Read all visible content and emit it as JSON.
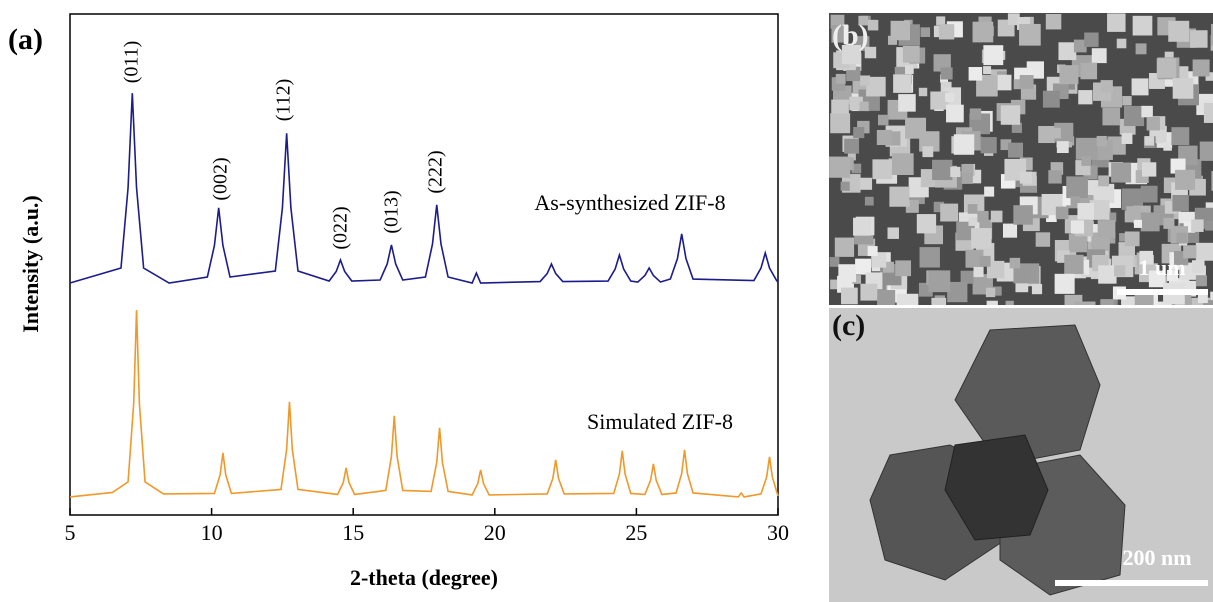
{
  "chart_data": {
    "type": "line",
    "xlabel": "2-theta (degree)",
    "ylabel": "Intensity (a.u.)",
    "xlim": [
      5,
      30
    ],
    "xticks": [
      5,
      10,
      15,
      20,
      25,
      30
    ],
    "ylim": [
      0,
      100
    ],
    "annotations": [
      "(011)",
      "(002)",
      "(112)",
      "(022)",
      "(013)",
      "(222)"
    ],
    "series": [
      {
        "name": "As-synthesized ZIF-8",
        "color": "#1c1c8c",
        "x": [
          5,
          6.8,
          7.05,
          7.2,
          7.35,
          7.6,
          8.5,
          9.85,
          10.1,
          10.25,
          10.4,
          10.65,
          12.25,
          12.5,
          12.65,
          12.8,
          13.05,
          14.15,
          14.4,
          14.55,
          14.7,
          14.95,
          15.95,
          16.2,
          16.35,
          16.5,
          16.75,
          17.55,
          17.8,
          17.95,
          18.1,
          18.35,
          19.2,
          19.35,
          19.5,
          21.6,
          21.85,
          22.0,
          22.15,
          22.4,
          24.0,
          24.25,
          24.4,
          24.55,
          24.8,
          25.05,
          25.3,
          25.45,
          25.6,
          25.85,
          26.2,
          26.45,
          26.6,
          26.75,
          27.0,
          29.15,
          29.4,
          29.55,
          29.7,
          29.95,
          30
        ],
        "values": [
          46.3,
          49.3,
          65.3,
          84.2,
          65.3,
          49.3,
          46.3,
          47.5,
          53.8,
          61.3,
          53.8,
          47.5,
          48.7,
          61.3,
          76.2,
          61.3,
          48.7,
          46.7,
          48.6,
          50.9,
          48.6,
          46.7,
          46.9,
          50.1,
          53.9,
          50.1,
          46.9,
          47.5,
          54.1,
          61.9,
          54.1,
          47.5,
          46.3,
          48.3,
          46.3,
          46.6,
          48.2,
          50.1,
          48.2,
          46.6,
          46.7,
          49.1,
          51.9,
          49.1,
          46.7,
          46.5,
          47.8,
          49.3,
          47.8,
          46.5,
          47.1,
          51.2,
          56.1,
          51.2,
          47.1,
          46.8,
          49.3,
          52.3,
          49.3,
          46.8,
          46.5
        ]
      },
      {
        "name": "Simulated ZIF-8",
        "color": "#f0982a",
        "x": [
          5,
          6.5,
          7.05,
          7.25,
          7.35,
          7.45,
          7.65,
          8.3,
          10.1,
          10.3,
          10.4,
          10.5,
          10.7,
          12.45,
          12.65,
          12.75,
          12.85,
          13.05,
          14.45,
          14.65,
          14.75,
          14.85,
          15.05,
          16.15,
          16.35,
          16.45,
          16.55,
          16.75,
          17.75,
          17.95,
          18.05,
          18.15,
          18.35,
          19.2,
          19.4,
          19.5,
          19.6,
          19.8,
          21.85,
          22.05,
          22.15,
          22.25,
          22.45,
          24.2,
          24.4,
          24.5,
          24.6,
          24.8,
          25.3,
          25.5,
          25.6,
          25.7,
          25.9,
          26.4,
          26.6,
          26.7,
          26.8,
          27.0,
          28.6,
          28.7,
          28.8,
          29.4,
          29.6,
          29.7,
          29.8,
          30
        ],
        "values": [
          3.6,
          4.5,
          6.6,
          22.3,
          40.9,
          22.3,
          6.6,
          4.2,
          4.3,
          8.0,
          12.4,
          8.0,
          4.3,
          5.1,
          13.1,
          22.6,
          13.1,
          5.1,
          4.1,
          6.5,
          9.4,
          6.5,
          4.1,
          4.9,
          11.7,
          19.8,
          11.7,
          4.9,
          4.7,
          10.5,
          17.4,
          10.5,
          4.7,
          4.0,
          6.3,
          9.0,
          6.3,
          4.0,
          4.2,
          7.3,
          11.0,
          7.3,
          4.2,
          4.3,
          8.2,
          12.8,
          8.2,
          4.3,
          4.1,
          6.9,
          10.2,
          6.9,
          4.1,
          4.4,
          8.3,
          13.0,
          8.3,
          4.4,
          3.6,
          4.4,
          3.6,
          4.2,
          7.6,
          11.6,
          7.6,
          3.8
        ]
      }
    ]
  },
  "panels": {
    "a": "(a)",
    "b": {
      "label": "(b)",
      "scale_bar": "1 um"
    },
    "c": {
      "label": "(c)",
      "scale_bar": "200 nm"
    }
  }
}
